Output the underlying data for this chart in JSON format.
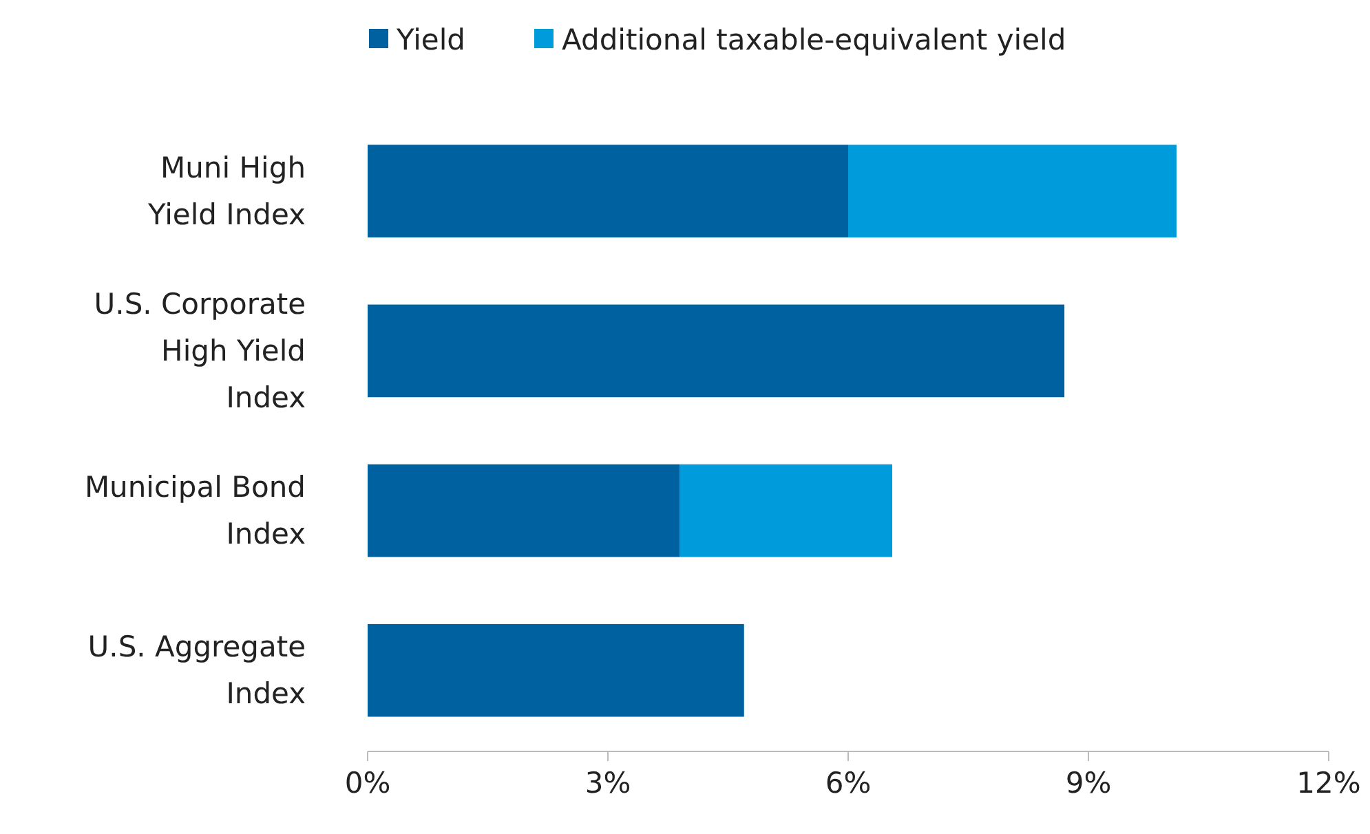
{
  "chart_data": {
    "type": "bar",
    "orientation": "horizontal",
    "stacked": true,
    "categories": [
      "Muni High Yield Index",
      "U.S. Corporate High Yield Index",
      "Municipal Bond Index",
      "U.S. Aggregate Index"
    ],
    "series": [
      {
        "name": "Yield",
        "color": "#0061a0",
        "values": [
          6.0,
          8.7,
          3.9,
          4.7
        ]
      },
      {
        "name": "Additional taxable-equivalent yield",
        "color": "#009bdb",
        "values": [
          4.1,
          null,
          2.65,
          null
        ]
      }
    ],
    "xlim": [
      0,
      12
    ],
    "xticks": [
      {
        "value": 0,
        "label": "0%"
      },
      {
        "value": 3,
        "label": "3%"
      },
      {
        "value": 6,
        "label": "6%"
      },
      {
        "value": 9,
        "label": "9%"
      },
      {
        "value": 12,
        "label": "12%"
      }
    ],
    "grid": false,
    "legend": "top"
  }
}
